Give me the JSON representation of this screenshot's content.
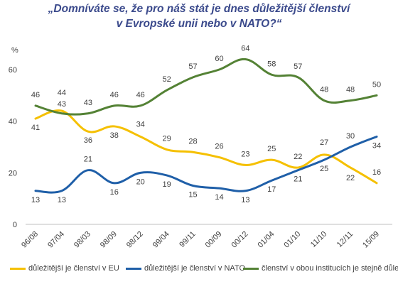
{
  "title_lines": [
    "„Domníváte se, že pro náš stát je dnes důležitější členství",
    "v Evropské unii nebo v NATO?“"
  ],
  "chart_data": {
    "type": "line",
    "title": "„Domníváte se, že pro náš stát je dnes důležitější členství v Evropské unii nebo v NATO?“",
    "ylabel": "%",
    "ylim": [
      0,
      60
    ],
    "yticks": [
      0,
      20,
      40,
      60
    ],
    "grid": false,
    "legend_position": "bottom",
    "categories": [
      "96/08",
      "97/04",
      "98/03",
      "98/09",
      "98/12",
      "99/04",
      "99/11",
      "00/09",
      "00/12",
      "01/04",
      "01/10",
      "11/10",
      "12/11",
      "15/09"
    ],
    "series": [
      {
        "name": "důležitější je členství v EU",
        "color": "#f5c000",
        "values": [
          41,
          44,
          36,
          38,
          34,
          29,
          28,
          26,
          23,
          25,
          22,
          27,
          22,
          16
        ],
        "labels": [
          "41",
          "44",
          "36",
          "38",
          "34",
          "29",
          "28",
          "26",
          "23",
          "25",
          "22",
          "27",
          "22",
          "16"
        ]
      },
      {
        "name": "důležitější je členství v NATO",
        "color": "#1f5fa8",
        "values": [
          13,
          13,
          21,
          16,
          20,
          19,
          15,
          14,
          13,
          17,
          21,
          25,
          30,
          34
        ],
        "labels": [
          "13",
          "13",
          "21",
          "16",
          "20",
          "19",
          "15",
          "14",
          "13",
          "17",
          "21",
          "25",
          "30",
          "34"
        ]
      },
      {
        "name": "členství v obou institucích je stejně důležité",
        "color": "#548235",
        "values": [
          46,
          43,
          43,
          46,
          46,
          52,
          57,
          60,
          64,
          58,
          57,
          48,
          48,
          50
        ],
        "labels": [
          "46",
          "43",
          "43",
          "46",
          "46",
          "52",
          "57",
          "60",
          "64",
          "58",
          "57",
          "48",
          "48",
          "50"
        ]
      }
    ]
  }
}
